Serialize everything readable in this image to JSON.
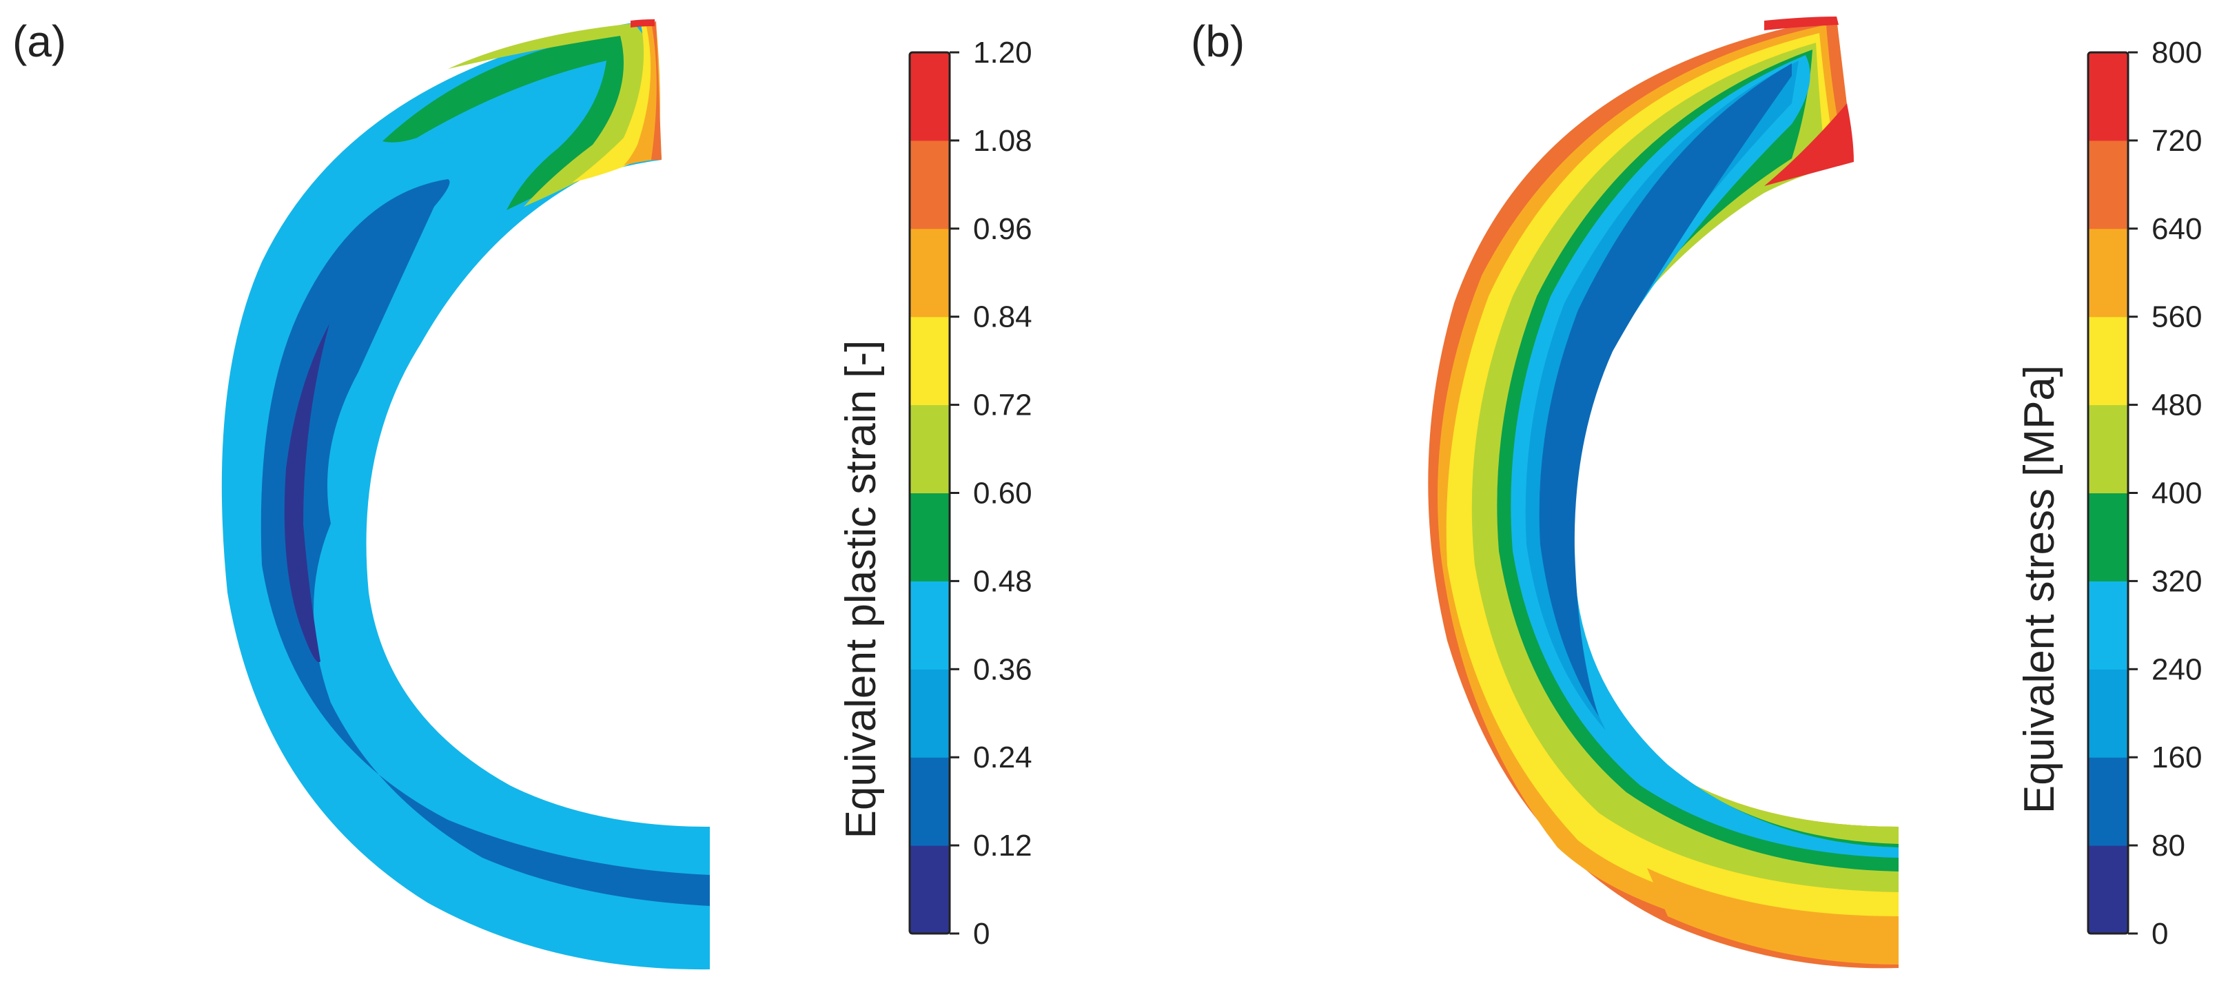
{
  "panels": [
    {
      "label": "(a)",
      "colorbar": {
        "title": "Equivalent plastic strain [-]",
        "ticks": [
          "0",
          "0.12",
          "0.24",
          "0.36",
          "0.48",
          "0.60",
          "0.72",
          "0.84",
          "0.96",
          "1.08",
          "1.20"
        ],
        "colors": [
          "#2e3591",
          "#0b6ab7",
          "#0aa0dd",
          "#13b6ea",
          "#0aa14b",
          "#b6d334",
          "#fbe72b",
          "#f7ab24",
          "#ee7033",
          "#e62e2e"
        ]
      }
    },
    {
      "label": "(b)",
      "colorbar": {
        "title": "Equivalent stress [MPa]",
        "ticks": [
          "0",
          "80",
          "160",
          "240",
          "320",
          "400",
          "480",
          "560",
          "640",
          "720",
          "800"
        ],
        "colors": [
          "#2e3591",
          "#0b6ab7",
          "#0aa0dd",
          "#13b6ea",
          "#0aa14b",
          "#b6d334",
          "#fbe72b",
          "#f7ab24",
          "#ee7033",
          "#e62e2e"
        ]
      }
    }
  ],
  "chart_data": [
    {
      "type": "heatmap",
      "title": "Equivalent plastic strain [-]",
      "panel": "(a)",
      "colorbar_range": [
        0,
        1.2
      ],
      "levels": [
        0,
        0.12,
        0.24,
        0.36,
        0.48,
        0.6,
        0.72,
        0.84,
        0.96,
        1.08,
        1.2
      ],
      "colormap": [
        "#2e3591",
        "#0b6ab7",
        "#0aa0dd",
        "#13b6ea",
        "#0aa14b",
        "#b6d334",
        "#fbe72b",
        "#f7ab24",
        "#ee7033",
        "#e62e2e"
      ]
    },
    {
      "type": "heatmap",
      "title": "Equivalent stress [MPa]",
      "panel": "(b)",
      "colorbar_range": [
        0,
        800
      ],
      "levels": [
        0,
        80,
        160,
        240,
        320,
        400,
        480,
        560,
        640,
        720,
        800
      ],
      "colormap": [
        "#2e3591",
        "#0b6ab7",
        "#0aa0dd",
        "#13b6ea",
        "#0aa14b",
        "#b6d334",
        "#fbe72b",
        "#f7ab24",
        "#ee7033",
        "#e62e2e"
      ]
    }
  ]
}
